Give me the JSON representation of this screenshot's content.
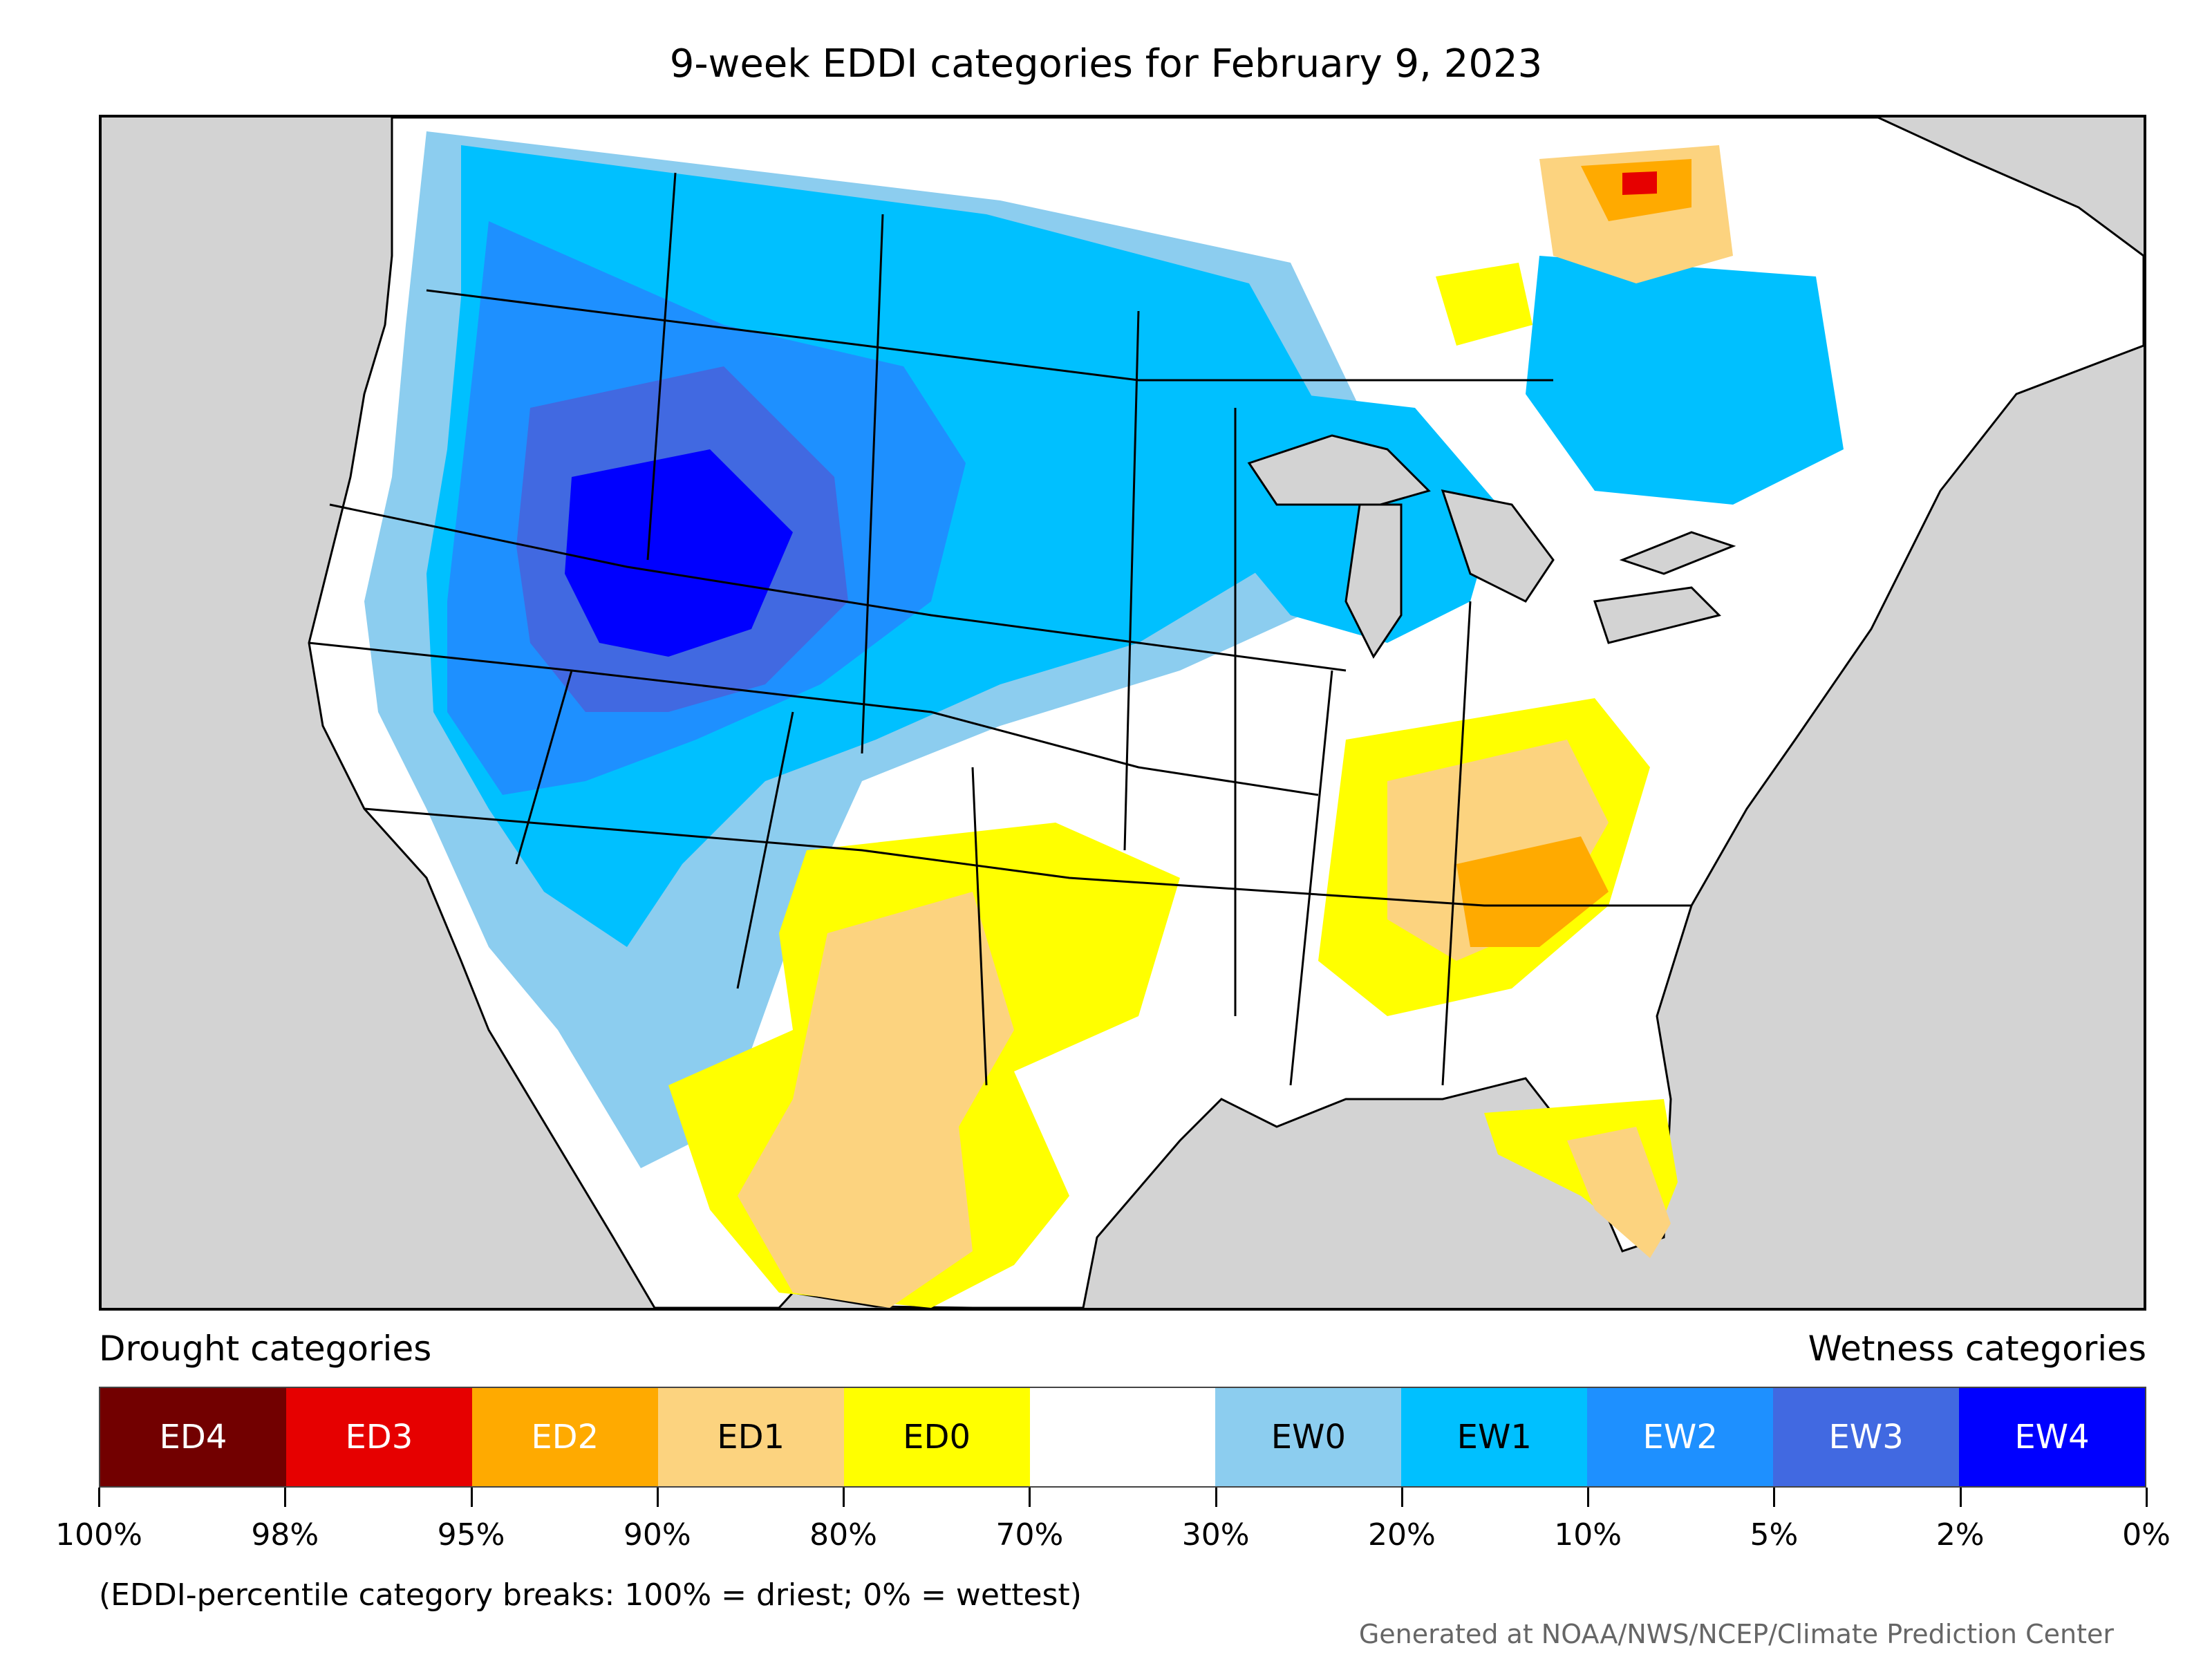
{
  "title": "9-week EDDI categories for February 9, 2023",
  "legend": {
    "drought_heading": "Drought categories",
    "wetness_heading": "Wetness categories",
    "categories": [
      {
        "label": "ED4",
        "color": "#720000",
        "text_color": "#ffffff"
      },
      {
        "label": "ED3",
        "color": "#e60000",
        "text_color": "#ffffff"
      },
      {
        "label": "ED2",
        "color": "#ffaa00",
        "text_color": "#ffffff"
      },
      {
        "label": "ED1",
        "color": "#fcd37f",
        "text_color": "#000000"
      },
      {
        "label": "ED0",
        "color": "#ffff00",
        "text_color": "#000000"
      },
      {
        "label": "",
        "color": "#ffffff",
        "text_color": "#000000"
      },
      {
        "label": "EW0",
        "color": "#8ccdef",
        "text_color": "#000000"
      },
      {
        "label": "EW1",
        "color": "#00c0ff",
        "text_color": "#000000"
      },
      {
        "label": "EW2",
        "color": "#1e90ff",
        "text_color": "#ffffff"
      },
      {
        "label": "EW3",
        "color": "#4169e1",
        "text_color": "#ffffff"
      },
      {
        "label": "EW4",
        "color": "#0000ff",
        "text_color": "#ffffff"
      }
    ],
    "tick_labels": [
      "100%",
      "98%",
      "95%",
      "90%",
      "80%",
      "70%",
      "30%",
      "20%",
      "10%",
      "5%",
      "2%",
      "0%"
    ]
  },
  "note": "(EDDI-percentile category breaks: 100% = driest; 0% = wettest)",
  "credit": "Generated at NOAA/NWS/NCEP/Climate Prediction Center",
  "map": {
    "background_color": "#d3d3d3",
    "regions": [
      {
        "name": "northern-rockies-plains",
        "category": "EW1"
      },
      {
        "name": "great-basin-idaho-wyoming",
        "category": "EW4"
      },
      {
        "name": "ohio-valley",
        "category": "ED1"
      },
      {
        "name": "kentucky-tennessee",
        "category": "ED2"
      },
      {
        "name": "southern-plains",
        "category": "ED0"
      },
      {
        "name": "west-texas",
        "category": "ED1"
      },
      {
        "name": "florida",
        "category": "ED1"
      },
      {
        "name": "quebec",
        "category": "ED2"
      }
    ]
  }
}
